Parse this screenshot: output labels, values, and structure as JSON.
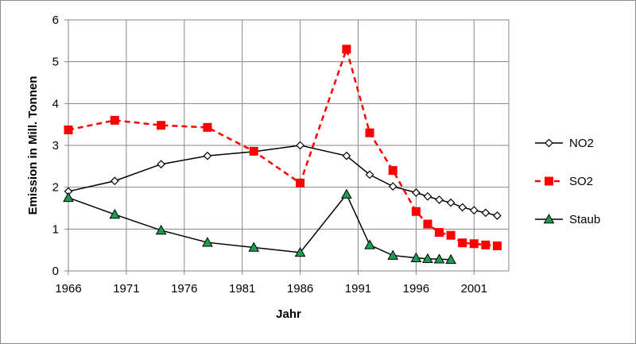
{
  "chart_data": {
    "type": "line",
    "title": "",
    "xlabel": "Jahr",
    "ylabel": "Emission in Mill. Tonnen",
    "xlim": [
      1966,
      2004
    ],
    "ylim": [
      0,
      6
    ],
    "xticks": [
      1966,
      1971,
      1976,
      1981,
      1986,
      1991,
      1996,
      2001
    ],
    "yticks": [
      0,
      1,
      2,
      3,
      4,
      5,
      6
    ],
    "grid": true,
    "legend_position": "right",
    "series": [
      {
        "name": "NO2",
        "color": "#000000",
        "line_style": "solid",
        "marker": "diamond-open",
        "points": [
          [
            1966,
            1.9
          ],
          [
            1970,
            2.15
          ],
          [
            1974,
            2.55
          ],
          [
            1978,
            2.75
          ],
          [
            1982,
            2.85
          ],
          [
            1986,
            3.0
          ],
          [
            1990,
            2.75
          ],
          [
            1992,
            2.3
          ],
          [
            1994,
            2.02
          ],
          [
            1996,
            1.87
          ],
          [
            1997,
            1.78
          ],
          [
            1998,
            1.7
          ],
          [
            1999,
            1.63
          ],
          [
            2000,
            1.52
          ],
          [
            2001,
            1.45
          ],
          [
            2002,
            1.39
          ],
          [
            2003,
            1.32
          ]
        ]
      },
      {
        "name": "SO2",
        "color": "#ff0000",
        "line_style": "dashed",
        "marker": "square",
        "points": [
          [
            1966,
            3.37
          ],
          [
            1970,
            3.6
          ],
          [
            1974,
            3.48
          ],
          [
            1978,
            3.43
          ],
          [
            1982,
            2.86
          ],
          [
            1986,
            2.1
          ],
          [
            1990,
            5.3
          ],
          [
            1992,
            3.3
          ],
          [
            1994,
            2.4
          ],
          [
            1996,
            1.42
          ],
          [
            1997,
            1.12
          ],
          [
            1998,
            0.92
          ],
          [
            1999,
            0.85
          ],
          [
            2000,
            0.67
          ],
          [
            2001,
            0.65
          ],
          [
            2002,
            0.62
          ],
          [
            2003,
            0.6
          ]
        ]
      },
      {
        "name": "Staub",
        "color": "#000000",
        "line_style": "solid",
        "marker": "triangle-green",
        "marker_color": "#18a050",
        "points": [
          [
            1966,
            1.75
          ],
          [
            1970,
            1.35
          ],
          [
            1974,
            0.97
          ],
          [
            1978,
            0.68
          ],
          [
            1982,
            0.56
          ],
          [
            1986,
            0.44
          ],
          [
            1990,
            1.83
          ],
          [
            1992,
            0.62
          ],
          [
            1994,
            0.37
          ],
          [
            1996,
            0.31
          ],
          [
            1997,
            0.29
          ],
          [
            1998,
            0.28
          ],
          [
            1999,
            0.27
          ]
        ]
      }
    ]
  }
}
